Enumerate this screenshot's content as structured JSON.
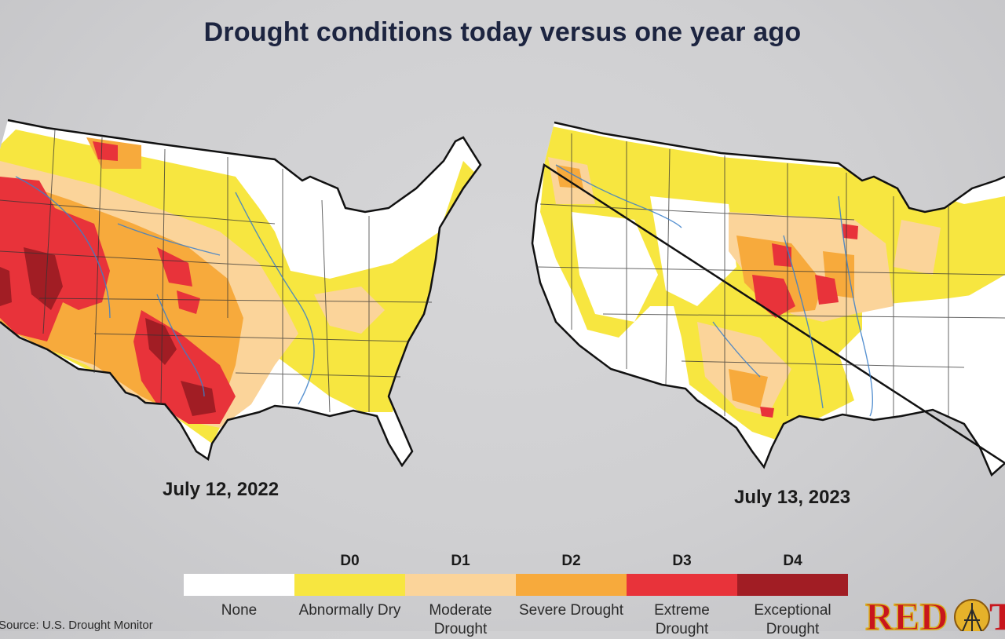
{
  "title": "Drought conditions today versus one year ago",
  "maps": [
    {
      "date": "July 12, 2022"
    },
    {
      "date": "July 13, 2023"
    }
  ],
  "legend": [
    {
      "code": "",
      "label": "None",
      "color": "#ffffff"
    },
    {
      "code": "D0",
      "label": "Abnormally Dry",
      "color": "#f7e640"
    },
    {
      "code": "D1",
      "label": "Moderate Drought",
      "color": "#fbd49a"
    },
    {
      "code": "D2",
      "label": "Severe Drought",
      "color": "#f7aa3c"
    },
    {
      "code": "D3",
      "label": "Extreme Drought",
      "color": "#e8333a"
    },
    {
      "code": "D4",
      "label": "Exceptional Drought",
      "color": "#a11d24"
    }
  ],
  "source": "Source: U.S. Drought Monitor",
  "logo_text": "RED"
}
